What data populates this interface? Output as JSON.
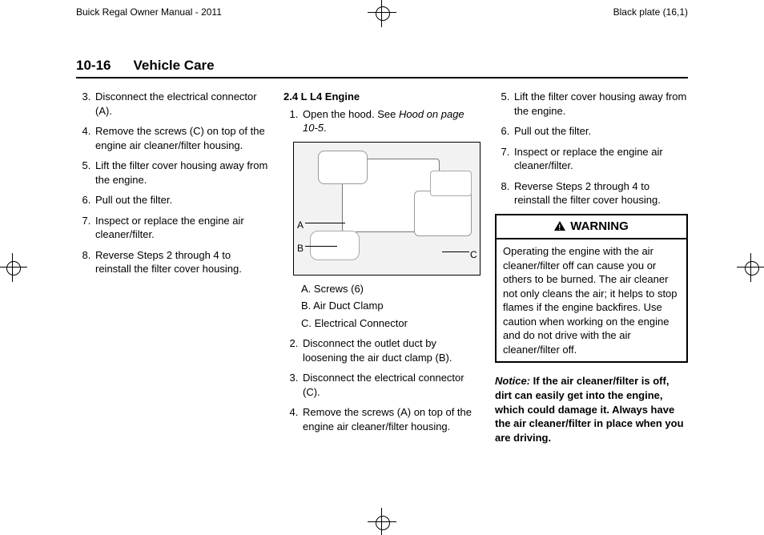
{
  "header": {
    "left": "Buick Regal Owner Manual - 2011",
    "right": "Black plate (16,1)"
  },
  "section": {
    "page_num": "10-16",
    "title": "Vehicle Care"
  },
  "col1": {
    "start": 3,
    "items": [
      "Disconnect the electrical connector (A).",
      "Remove the screws (C) on top of the engine air cleaner/filter housing.",
      "Lift the filter cover housing away from the engine.",
      "Pull out the filter.",
      "Inspect or replace the engine air cleaner/filter.",
      "Reverse Steps 2 through 4 to reinstall the filter cover housing."
    ]
  },
  "col2": {
    "subhead": "2.4 L L4 Engine",
    "step1_pre": "Open the hood. See ",
    "step1_ref": "Hood on page 10‑5",
    "step1_post": ".",
    "legendA": "A.  Screws (6)",
    "legendB": "B.  Air Duct Clamp",
    "legendC": "C.  Electrical Connector",
    "steps_rest_start": 2,
    "steps_rest": [
      "Disconnect the outlet duct by loosening the air duct clamp (B).",
      "Disconnect the electrical connector (C).",
      "Remove the screws (A) on top of the engine air cleaner/filter housing."
    ],
    "fig": {
      "A": "A",
      "B": "B",
      "C": "C"
    }
  },
  "col3": {
    "start": 5,
    "items": [
      "Lift the filter cover housing away from the engine.",
      "Pull out the filter.",
      "Inspect or replace the engine air cleaner/filter.",
      "Reverse Steps 2 through 4 to reinstall the filter cover housing."
    ],
    "warning_title": "WARNING",
    "warning_body": "Operating the engine with the air cleaner/filter off can cause you or others to be burned. The air cleaner not only cleans the air; it helps to stop flames if the engine backfires. Use caution when working on the engine and do not drive with the air cleaner/filter off.",
    "notice_label": "Notice:",
    "notice_body": "  If the air cleaner/filter is off, dirt can easily get into the engine, which could damage it. Always have the air cleaner/filter in place when you are driving."
  }
}
